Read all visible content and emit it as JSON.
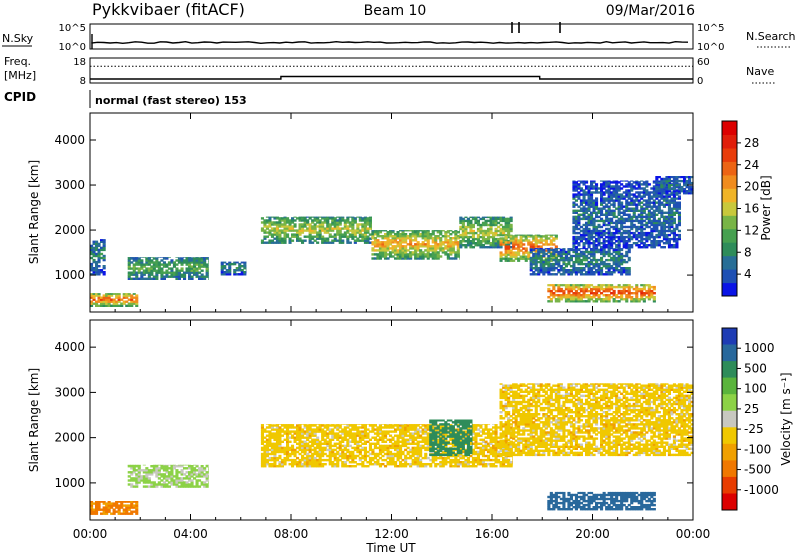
{
  "header": {
    "station": "Pykkvibaer (fitACF)",
    "beam": "Beam 10",
    "date": "09/Mar/2016"
  },
  "strips": {
    "nsky_label": "N.Sky",
    "nsky_ticks": [
      "10^5",
      "10^0"
    ],
    "nsearch_label": "N.Search",
    "nsearch_ticks": [
      "10^5",
      "10^0"
    ],
    "freq_label_1": "Freq.",
    "freq_label_2": "[MHz]",
    "freq_ticks": [
      "18",
      "8"
    ],
    "nave_label": "Nave",
    "nave_ticks": [
      "60",
      "0"
    ],
    "cpid_label": "CPID",
    "cpid_text": "normal (fast stereo) 153"
  },
  "chart_data": [
    {
      "type": "heatmap",
      "panel": "power",
      "xlabel": "",
      "ylabel": "Slant Range [km]",
      "x_ticks": [
        "00:00",
        "04:00",
        "08:00",
        "12:00",
        "16:00",
        "20:00",
        "00:00"
      ],
      "x_range_hours": [
        0,
        24
      ],
      "y_ticks": [
        1000,
        2000,
        3000,
        4000
      ],
      "ylim": [
        180,
        4600
      ],
      "colorbar": {
        "label": "Power [dB]",
        "ticks": [
          4,
          8,
          12,
          16,
          20,
          24,
          28
        ],
        "range": [
          0,
          32
        ],
        "colors": [
          "#0a14e6",
          "#1e50b4",
          "#286e96",
          "#2e8c5a",
          "#46a050",
          "#78b446",
          "#c8c83c",
          "#f0b428",
          "#f08c1e",
          "#ec6414",
          "#e83c0a",
          "#e01e0a",
          "#dc0000"
        ]
      },
      "echo_bands": [
        {
          "t0": 0.0,
          "t1": 1.9,
          "r0": 300,
          "r1": 600,
          "power": 24
        },
        {
          "t0": 0.0,
          "t1": 0.6,
          "r0": 1000,
          "r1": 1800,
          "power": 8
        },
        {
          "t0": 1.5,
          "t1": 4.7,
          "r0": 900,
          "r1": 1400,
          "power": 12
        },
        {
          "t0": 5.2,
          "t1": 6.2,
          "r0": 1000,
          "r1": 1300,
          "power": 8
        },
        {
          "t0": 6.8,
          "t1": 11.2,
          "r0": 1700,
          "r1": 2300,
          "power": 16
        },
        {
          "t0": 11.2,
          "t1": 14.7,
          "r0": 1350,
          "r1": 2000,
          "power": 20
        },
        {
          "t0": 14.7,
          "t1": 16.8,
          "r0": 1600,
          "r1": 2300,
          "power": 16
        },
        {
          "t0": 16.3,
          "t1": 18.6,
          "r0": 1300,
          "r1": 1900,
          "power": 24
        },
        {
          "t0": 17.5,
          "t1": 21.5,
          "r0": 1000,
          "r1": 1600,
          "power": 8
        },
        {
          "t0": 19.2,
          "t1": 23.5,
          "r0": 1600,
          "r1": 3100,
          "power": 6
        },
        {
          "t0": 18.2,
          "t1": 22.5,
          "r0": 400,
          "r1": 800,
          "power": 26
        },
        {
          "t0": 22.5,
          "t1": 24.0,
          "r0": 2800,
          "r1": 3200,
          "power": 6
        }
      ]
    },
    {
      "type": "heatmap",
      "panel": "velocity",
      "xlabel": "Time UT",
      "ylabel": "Slant Range [km]",
      "x_ticks": [
        "00:00",
        "04:00",
        "08:00",
        "12:00",
        "16:00",
        "20:00",
        "00:00"
      ],
      "x_range_hours": [
        0,
        24
      ],
      "y_ticks": [
        1000,
        2000,
        3000,
        4000
      ],
      "ylim": [
        180,
        4600
      ],
      "colorbar": {
        "label": "Velocity [m s⁻¹]",
        "ticks": [
          "1000",
          "500",
          "100",
          "25",
          "-25",
          "-100",
          "-500",
          "-1000"
        ],
        "colors": [
          "#1e3cb4",
          "#28689c",
          "#2e8c5a",
          "#5ab43c",
          "#8cd246",
          "#c8c8c0",
          "#f0c800",
          "#f0a000",
          "#f07800",
          "#e83c00",
          "#dc0000"
        ]
      },
      "echo_bands": [
        {
          "t0": 0.0,
          "t1": 1.9,
          "r0": 300,
          "r1": 600,
          "velocity": -120
        },
        {
          "t0": 1.5,
          "t1": 4.7,
          "r0": 900,
          "r1": 1400,
          "velocity": 60
        },
        {
          "t0": 6.8,
          "t1": 16.8,
          "r0": 1350,
          "r1": 2300,
          "velocity": 0
        },
        {
          "t0": 13.5,
          "t1": 15.2,
          "r0": 1600,
          "r1": 2400,
          "velocity": 300
        },
        {
          "t0": 16.3,
          "t1": 24.0,
          "r0": 1600,
          "r1": 3200,
          "velocity": 0
        },
        {
          "t0": 18.2,
          "t1": 22.5,
          "r0": 400,
          "r1": 800,
          "velocity": 700
        }
      ]
    }
  ],
  "strip_data": {
    "freq_steps": [
      {
        "t0": 0.0,
        "t1": 7.6,
        "mhz": 9.6
      },
      {
        "t0": 7.6,
        "t1": 17.9,
        "mhz": 10.6
      },
      {
        "t0": 17.9,
        "t1": 24.0,
        "mhz": 9.6
      }
    ],
    "nave_level": 40,
    "nsky_level": 0.78
  }
}
